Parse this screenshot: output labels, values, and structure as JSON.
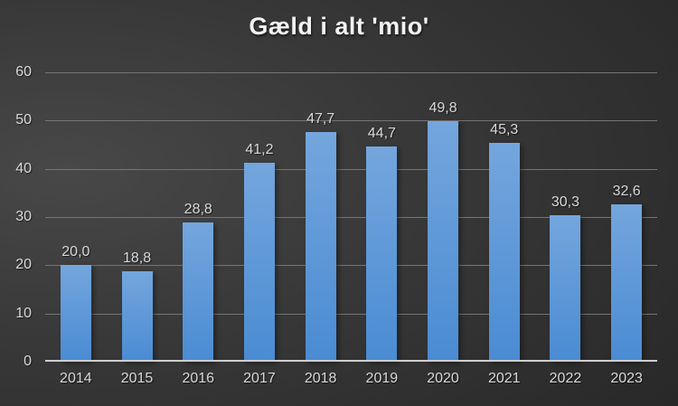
{
  "chart_data": {
    "type": "bar",
    "title": "Gæld i alt 'mio'",
    "categories": [
      "2014",
      "2015",
      "2016",
      "2017",
      "2018",
      "2019",
      "2020",
      "2021",
      "2022",
      "2023"
    ],
    "values": [
      20.0,
      18.8,
      28.8,
      41.2,
      47.7,
      44.7,
      49.8,
      45.3,
      30.3,
      32.6
    ],
    "value_labels": [
      "20,0",
      "18,8",
      "28,8",
      "41,2",
      "47,7",
      "44,7",
      "49,8",
      "45,3",
      "30,3",
      "32,6"
    ],
    "xlabel": "",
    "ylabel": "",
    "ylim": [
      0,
      60
    ],
    "y_ticks": [
      0,
      10,
      20,
      30,
      40,
      50,
      60
    ],
    "grid": "horizontal",
    "legend": "none",
    "decimal_separator": ","
  },
  "colors": {
    "bar_top": "#74a6dd",
    "bar_bottom": "#4a8bd3",
    "gridline": "#757575",
    "axis_line": "#cfcfcf",
    "tick_label": "#d9d9d9",
    "data_label": "#d9d9d9",
    "title": "#f2f2f2",
    "background_center": "#484848",
    "background_mid": "#383838",
    "background_edge": "#282828"
  }
}
